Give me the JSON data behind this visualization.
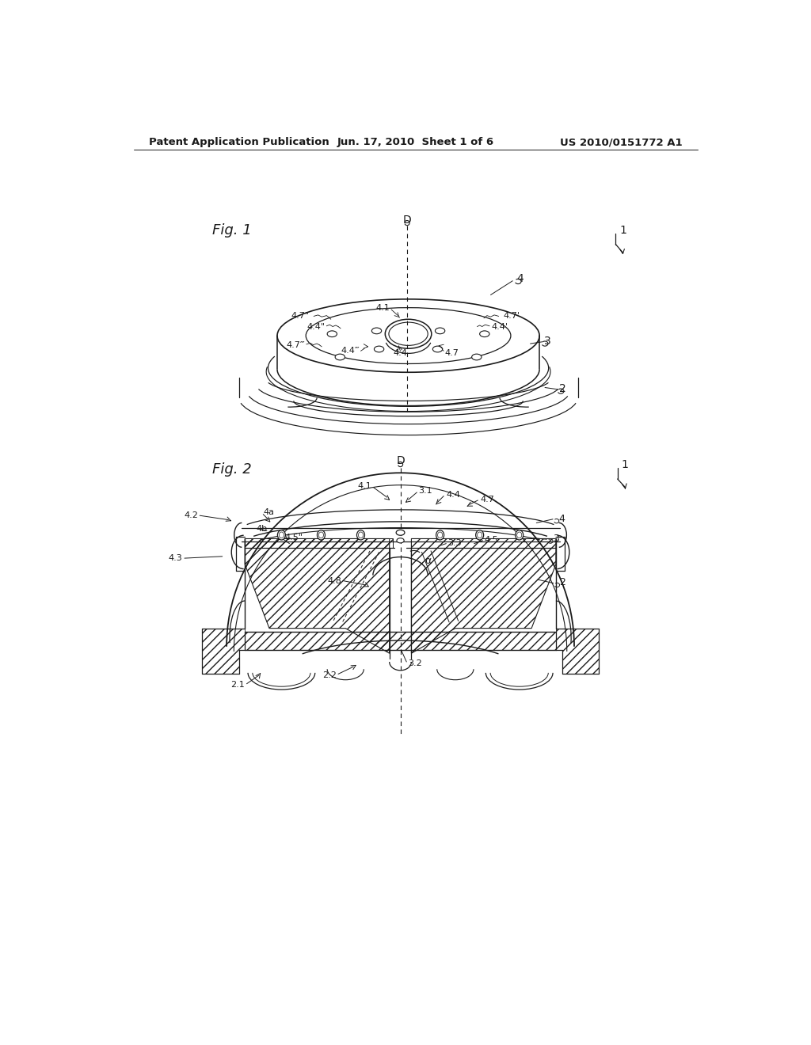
{
  "bg_color": "#ffffff",
  "line_color": "#1a1a1a",
  "header_left": "Patent Application Publication",
  "header_mid": "Jun. 17, 2010  Sheet 1 of 6",
  "header_right": "US 2010/0151772 A1"
}
